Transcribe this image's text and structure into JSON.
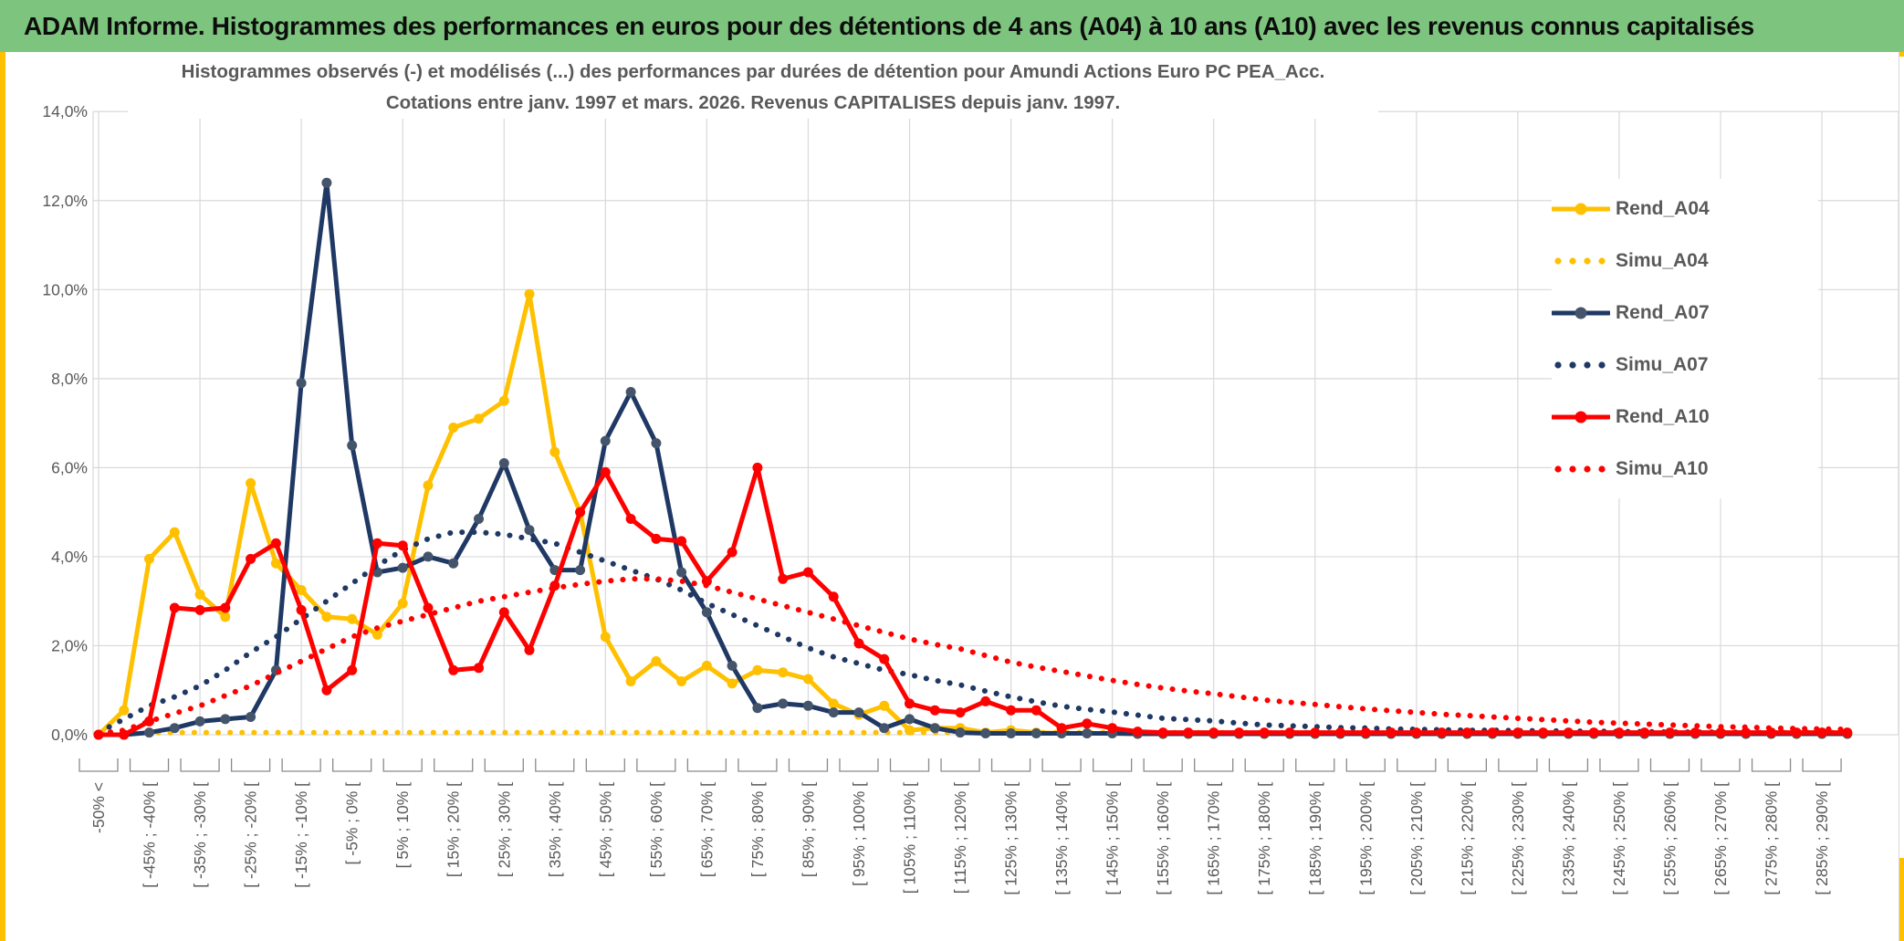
{
  "header": {
    "title": "ADAM Informe. Histogrammes des performances en euros pour des détentions de 4 ans (A04) à 10 ans (A10) avec les revenus connus capitalisés"
  },
  "chart": {
    "title_line1": "Histogrammes observés (-) et modélisés (...) des performances par durées de détention pour Amundi Actions Euro PC PEA_Acc.",
    "title_line2": "Cotations entre janv. 1997 et mars. 2026. Revenus CAPITALISES depuis janv. 1997."
  },
  "chart_data": {
    "type": "line",
    "title": "Histogrammes observés (-) et modélisés (...) des performances par durées de détention pour Amundi Actions Euro PC PEA_Acc. Cotations entre janv. 1997 et mars. 2026. Revenus CAPITALISES depuis janv. 1997.",
    "xlabel": "",
    "ylabel": "",
    "ylim": [
      0,
      14
    ],
    "grid": true,
    "legend_position": "right",
    "y_tick_labels": [
      "0,0%",
      "2,0%",
      "4,0%",
      "6,0%",
      "8,0%",
      "10,0%",
      "12,0%",
      "14,0%"
    ],
    "y_tick_values": [
      0,
      2,
      4,
      6,
      8,
      10,
      12,
      14
    ],
    "n_bins": 70,
    "x_label_bin_indices": [
      0,
      2,
      4,
      6,
      8,
      10,
      12,
      14,
      16,
      18,
      20,
      22,
      24,
      26,
      28,
      30,
      32,
      34,
      36,
      38,
      40,
      42,
      44,
      46,
      48,
      50,
      52,
      54,
      56,
      58,
      60,
      62,
      64,
      66,
      68
    ],
    "x_labels": [
      "-50% <",
      "[ -45% ; -40% [",
      "[ -35% ; -30% [",
      "[ -25% ; -20% [",
      "[ -15% ; -10% [",
      "[ -5% ; 0% [",
      "[ 5% ; 10% [",
      "[ 15% ; 20% [",
      "[ 25% ; 30% [",
      "[ 35% ; 40% [",
      "[ 45% ; 50% [",
      "[ 55% ; 60% [",
      "[ 65% ; 70% [",
      "[ 75% ; 80% [",
      "[ 85% ; 90% [",
      "[ 95% ; 100% [",
      "[ 105% ; 110% [",
      "[ 115% ; 120% [",
      "[ 125% ; 130% [",
      "[ 135% ; 140% [",
      "[ 145% ; 150% [",
      "[ 155% ; 160% [",
      "[ 165% ; 170% [",
      "[ 175% ; 180% [",
      "[ 185% ; 190% [",
      "[ 195% ; 200% [",
      "[ 205% ; 210% [",
      "[ 215% ; 220% [",
      "[ 225% ; 230% [",
      "[ 235% ; 240% [",
      "[ 245% ; 250% [",
      "[ 255% ; 260% [",
      "[ 265% ; 270% [",
      "[ 275% ; 280% [",
      "[ 285% ; 290% ["
    ],
    "colors": {
      "gold": "#FFC000",
      "navy": "#1F3864",
      "navy_marker": "#44546A",
      "red": "#FF0000",
      "grid": "#D9D9D9",
      "axis_text": "#595959",
      "tick_bracket": "#8a8a8a"
    },
    "series": [
      {
        "name": "Rend_A04",
        "style": "solid",
        "color": "#FFC000",
        "marker_color": "#FFC000",
        "values": [
          0.0,
          0.55,
          3.95,
          4.55,
          3.15,
          2.65,
          5.65,
          3.85,
          3.25,
          2.65,
          2.6,
          2.25,
          2.95,
          5.6,
          6.9,
          7.1,
          7.5,
          9.9,
          6.35,
          5.0,
          2.2,
          1.2,
          1.65,
          1.2,
          1.55,
          1.15,
          1.45,
          1.4,
          1.25,
          0.7,
          0.45,
          0.65,
          0.1,
          0.15,
          0.15,
          0.05,
          0.1,
          0.05,
          0.03,
          0.03,
          0.03,
          0.02,
          0.02,
          0.02,
          0.02,
          0.02,
          0.02,
          0.02,
          0.02,
          0.02,
          0.02,
          0.02,
          0.02,
          0.02,
          0.02,
          0.02,
          0.02,
          0.02,
          0.02,
          0.02,
          0.02,
          0.02,
          0.02,
          0.02,
          0.02,
          0.02,
          0.02,
          0.02,
          0.02,
          0.02
        ]
      },
      {
        "name": "Simu_A04",
        "style": "dotted",
        "color": "#FFC000",
        "values": [
          0.05,
          0.05,
          0.05,
          0.05,
          0.05,
          0.05,
          0.05,
          0.05,
          0.05,
          0.05,
          0.05,
          0.05,
          0.05,
          0.05,
          0.05,
          0.05,
          0.05,
          0.05,
          0.05,
          0.05,
          0.05,
          0.05,
          0.05,
          0.05,
          0.05,
          0.05,
          0.05,
          0.05,
          0.05,
          0.05,
          0.05,
          0.05,
          0.05,
          0.05,
          0.05,
          0.05,
          0.05,
          0.05,
          0.05,
          0.05,
          0.05,
          0.05,
          0.05,
          0.05,
          0.05,
          0.05,
          0.05,
          0.05,
          0.05,
          0.05,
          0.05,
          0.05,
          0.05,
          0.05,
          0.05,
          0.05,
          0.05,
          0.05,
          0.05,
          0.05,
          0.05,
          0.05,
          0.05,
          0.05,
          0.05,
          0.05,
          0.05,
          0.05,
          0.05,
          0.05
        ]
      },
      {
        "name": "Rend_A07",
        "style": "solid",
        "color": "#1F3864",
        "marker_color": "#44546A",
        "values": [
          0.0,
          0.0,
          0.05,
          0.15,
          0.3,
          0.35,
          0.4,
          1.45,
          7.9,
          12.4,
          6.5,
          3.65,
          3.75,
          4.0,
          3.85,
          4.85,
          6.1,
          4.6,
          3.7,
          3.7,
          6.6,
          7.7,
          6.55,
          3.65,
          2.75,
          1.55,
          0.6,
          0.7,
          0.65,
          0.5,
          0.5,
          0.15,
          0.35,
          0.15,
          0.05,
          0.03,
          0.03,
          0.03,
          0.03,
          0.03,
          0.03,
          0.02,
          0.02,
          0.02,
          0.02,
          0.02,
          0.02,
          0.02,
          0.02,
          0.02,
          0.02,
          0.02,
          0.02,
          0.02,
          0.02,
          0.02,
          0.02,
          0.02,
          0.02,
          0.02,
          0.02,
          0.02,
          0.02,
          0.02,
          0.02,
          0.02,
          0.02,
          0.02,
          0.02,
          0.02
        ]
      },
      {
        "name": "Simu_A07",
        "style": "dotted",
        "color": "#1F3864",
        "values": [
          0.05,
          0.35,
          0.65,
          0.85,
          1.1,
          1.45,
          1.85,
          2.2,
          2.6,
          3.0,
          3.4,
          3.8,
          4.15,
          4.4,
          4.55,
          4.55,
          4.5,
          4.4,
          4.3,
          4.1,
          3.9,
          3.7,
          3.5,
          3.25,
          2.95,
          2.7,
          2.45,
          2.2,
          1.95,
          1.75,
          1.6,
          1.45,
          1.35,
          1.22,
          1.12,
          0.98,
          0.85,
          0.74,
          0.64,
          0.57,
          0.51,
          0.44,
          0.37,
          0.34,
          0.31,
          0.26,
          0.22,
          0.2,
          0.18,
          0.16,
          0.15,
          0.13,
          0.12,
          0.11,
          0.1,
          0.1,
          0.09,
          0.09,
          0.08,
          0.08,
          0.07,
          0.07,
          0.06,
          0.06,
          0.06,
          0.05,
          0.05,
          0.05,
          0.05,
          0.05
        ]
      },
      {
        "name": "Rend_A10",
        "style": "solid",
        "color": "#FF0000",
        "marker_color": "#FF0000",
        "values": [
          0.0,
          0.0,
          0.3,
          2.85,
          2.8,
          2.85,
          3.95,
          4.3,
          2.8,
          1.0,
          1.45,
          4.3,
          4.25,
          2.85,
          1.45,
          1.5,
          2.75,
          1.9,
          3.35,
          5.0,
          5.9,
          4.85,
          4.4,
          4.35,
          3.45,
          4.1,
          6.0,
          3.5,
          3.65,
          3.1,
          2.05,
          1.7,
          0.7,
          0.55,
          0.5,
          0.75,
          0.55,
          0.55,
          0.15,
          0.25,
          0.15,
          0.07,
          0.05,
          0.05,
          0.05,
          0.05,
          0.05,
          0.05,
          0.05,
          0.05,
          0.05,
          0.05,
          0.05,
          0.05,
          0.05,
          0.05,
          0.05,
          0.05,
          0.05,
          0.05,
          0.05,
          0.05,
          0.05,
          0.05,
          0.05,
          0.05,
          0.05,
          0.05,
          0.05,
          0.05
        ]
      },
      {
        "name": "Simu_A10",
        "style": "dotted",
        "color": "#FF0000",
        "values": [
          0.02,
          0.1,
          0.3,
          0.48,
          0.65,
          0.88,
          1.1,
          1.38,
          1.65,
          1.93,
          2.2,
          2.4,
          2.55,
          2.7,
          2.85,
          3.0,
          3.1,
          3.2,
          3.3,
          3.38,
          3.45,
          3.5,
          3.5,
          3.45,
          3.35,
          3.2,
          3.05,
          2.9,
          2.75,
          2.6,
          2.45,
          2.3,
          2.15,
          2.03,
          1.93,
          1.78,
          1.63,
          1.52,
          1.42,
          1.32,
          1.22,
          1.13,
          1.05,
          0.98,
          0.92,
          0.85,
          0.78,
          0.73,
          0.68,
          0.63,
          0.58,
          0.54,
          0.5,
          0.46,
          0.43,
          0.4,
          0.37,
          0.34,
          0.31,
          0.28,
          0.26,
          0.24,
          0.22,
          0.2,
          0.18,
          0.17,
          0.15,
          0.14,
          0.13,
          0.12
        ]
      }
    ]
  },
  "legend": {
    "items": [
      {
        "label": "Rend_A04",
        "style": "solid",
        "color": "#FFC000",
        "marker_color": "#FFC000"
      },
      {
        "label": "Simu_A04",
        "style": "dotted",
        "color": "#FFC000"
      },
      {
        "label": "Rend_A07",
        "style": "solid",
        "color": "#1F3864",
        "marker_color": "#44546A"
      },
      {
        "label": "Simu_A07",
        "style": "dotted",
        "color": "#1F3864"
      },
      {
        "label": "Rend_A10",
        "style": "solid",
        "color": "#FF0000",
        "marker_color": "#FF0000"
      },
      {
        "label": "Simu_A10",
        "style": "dotted",
        "color": "#FF0000"
      }
    ]
  }
}
